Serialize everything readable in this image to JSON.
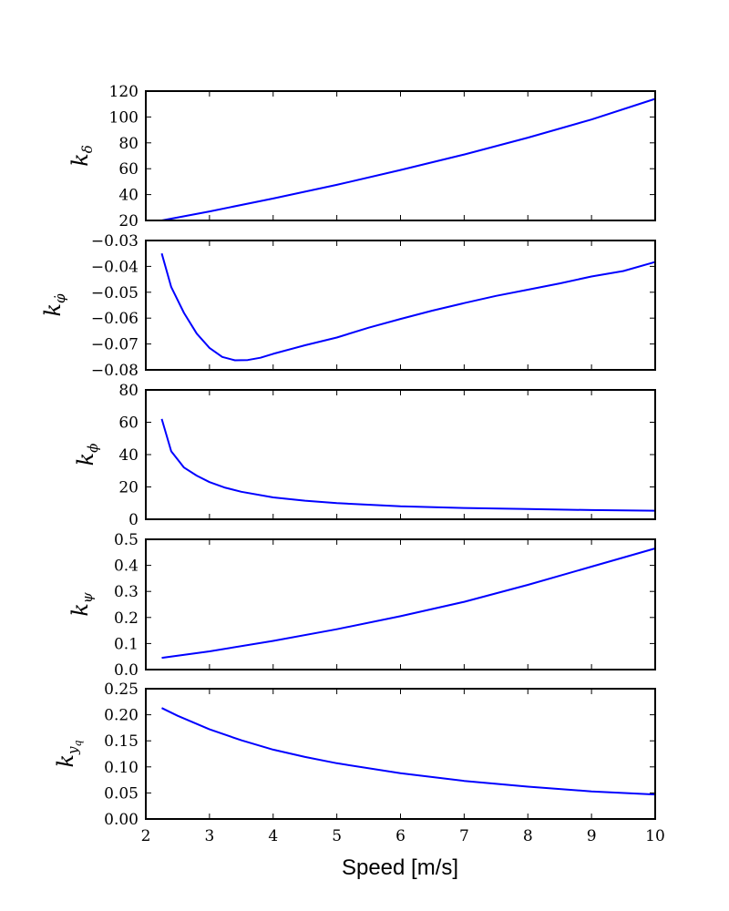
{
  "chart_data": [
    {
      "type": "line",
      "ylabel_symbol": "k",
      "ylabel_sub": "δ",
      "ylabel_dot": false,
      "ylabel_subsub": "",
      "ylim": [
        20,
        120
      ],
      "yticks": [
        20,
        40,
        60,
        80,
        100,
        120
      ],
      "ytick_labels": [
        "20",
        "40",
        "60",
        "80",
        "100",
        "120"
      ],
      "line_color": "#0000ff",
      "x": [
        2.25,
        3,
        4,
        5,
        6,
        7,
        8,
        9,
        10
      ],
      "y": [
        20,
        27,
        37,
        47.5,
        59,
        71,
        84,
        98,
        114
      ]
    },
    {
      "type": "line",
      "ylabel_symbol": "k",
      "ylabel_sub": "φ",
      "ylabel_dot": true,
      "ylabel_subsub": "",
      "ylim": [
        -0.08,
        -0.03
      ],
      "yticks": [
        -0.08,
        -0.07,
        -0.06,
        -0.05,
        -0.04,
        -0.03
      ],
      "ytick_labels": [
        "−0.08",
        "−0.07",
        "−0.06",
        "−0.05",
        "−0.04",
        "−0.03"
      ],
      "line_color": "#0000ff",
      "x": [
        2.25,
        2.4,
        2.6,
        2.8,
        3.0,
        3.2,
        3.4,
        3.6,
        3.8,
        4,
        4.5,
        5,
        5.5,
        6,
        6.5,
        7,
        7.5,
        8,
        8.5,
        9,
        9.5,
        10
      ],
      "y": [
        -0.035,
        -0.048,
        -0.058,
        -0.066,
        -0.0715,
        -0.075,
        -0.0763,
        -0.0762,
        -0.0753,
        -0.0738,
        -0.0705,
        -0.0675,
        -0.0637,
        -0.0603,
        -0.0571,
        -0.0542,
        -0.0514,
        -0.049,
        -0.0466,
        -0.0439,
        -0.0418,
        -0.0383
      ]
    },
    {
      "type": "line",
      "ylabel_symbol": "k",
      "ylabel_sub": "ϕ",
      "ylabel_dot": false,
      "ylabel_subsub": "",
      "ylim": [
        0,
        80
      ],
      "yticks": [
        0,
        20,
        40,
        60,
        80
      ],
      "ytick_labels": [
        "0",
        "20",
        "40",
        "60",
        "80"
      ],
      "line_color": "#0000ff",
      "x": [
        2.25,
        2.4,
        2.6,
        2.8,
        3.0,
        3.25,
        3.5,
        4,
        4.5,
        5,
        6,
        7,
        8,
        9,
        10
      ],
      "y": [
        62,
        42,
        32,
        27,
        23,
        19.5,
        17,
        13.5,
        11.5,
        10,
        8,
        7,
        6.3,
        5.7,
        5.3
      ]
    },
    {
      "type": "line",
      "ylabel_symbol": "k",
      "ylabel_sub": "ψ",
      "ylabel_dot": false,
      "ylabel_subsub": "",
      "ylim": [
        0.0,
        0.5
      ],
      "yticks": [
        0.0,
        0.1,
        0.2,
        0.3,
        0.4,
        0.5
      ],
      "ytick_labels": [
        "0.0",
        "0.1",
        "0.2",
        "0.3",
        "0.4",
        "0.5"
      ],
      "line_color": "#0000ff",
      "x": [
        2.25,
        3,
        4,
        5,
        6,
        7,
        8,
        9,
        10
      ],
      "y": [
        0.045,
        0.07,
        0.11,
        0.155,
        0.205,
        0.26,
        0.325,
        0.395,
        0.465
      ]
    },
    {
      "type": "line",
      "ylabel_symbol": "k",
      "ylabel_sub": "y",
      "ylabel_dot": false,
      "ylabel_subsub": "q",
      "ylim": [
        0.0,
        0.25
      ],
      "yticks": [
        0.0,
        0.05,
        0.1,
        0.15,
        0.2,
        0.25
      ],
      "ytick_labels": [
        "0.00",
        "0.05",
        "0.10",
        "0.15",
        "0.20",
        "0.25"
      ],
      "line_color": "#0000ff",
      "x": [
        2.25,
        2.5,
        3,
        3.5,
        4,
        4.5,
        5,
        6,
        7,
        8,
        9,
        10
      ],
      "y": [
        0.213,
        0.198,
        0.172,
        0.151,
        0.133,
        0.119,
        0.107,
        0.088,
        0.073,
        0.062,
        0.053,
        0.047
      ]
    }
  ],
  "xaxis": {
    "xlim": [
      2,
      10
    ],
    "xticks": [
      2,
      3,
      4,
      5,
      6,
      7,
      8,
      9,
      10
    ],
    "xtick_labels": [
      "2",
      "3",
      "4",
      "5",
      "6",
      "7",
      "8",
      "9",
      "10"
    ],
    "xlabel": "Speed [m/s]"
  }
}
